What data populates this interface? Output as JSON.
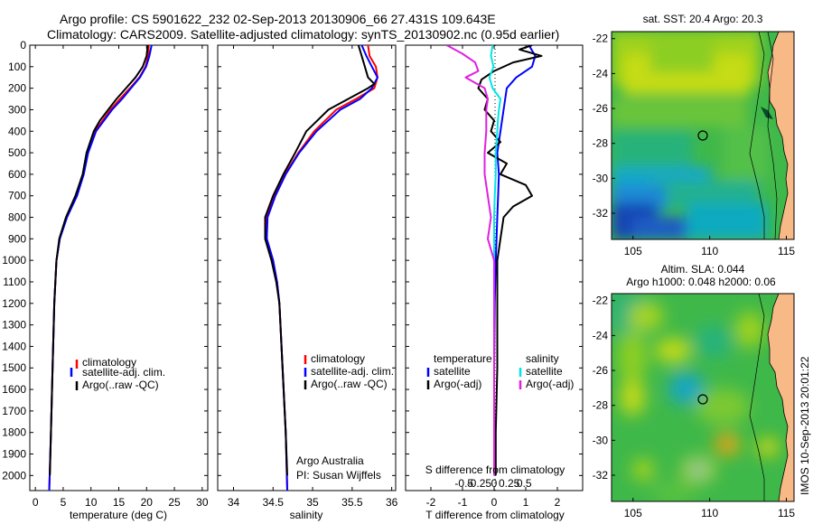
{
  "title": {
    "line1": "Argo profile: CS 5901622_232 02-Sep-2013 20130906_66 27.431S 109.643E",
    "line2": "Climatology: CARS2009. Satellite-adjusted climatology: synTS_20130902.nc (0.95d earlier)"
  },
  "stamp": "IMOS 10-Sep-2013 20:01:22",
  "colors": {
    "climatology": "#ff0000",
    "satellite": "#0000ff",
    "argo": "#000000",
    "salinity_satellite": "#00e5e5",
    "salinity_argo": "#e020e0"
  },
  "chart_data": [
    {
      "type": "line",
      "xlabel": "temperature (deg C)",
      "ylabel": "",
      "xlim": [
        -1,
        31
      ],
      "ylim": [
        2070,
        0
      ],
      "x_ticks": [
        "0",
        "5",
        "10",
        "15",
        "20",
        "25",
        "30"
      ],
      "y_ticks": [
        "0",
        "100",
        "200",
        "300",
        "400",
        "500",
        "600",
        "700",
        "800",
        "900",
        "1000",
        "1100",
        "1200",
        "1300",
        "1400",
        "1500",
        "1600",
        "1700",
        "1800",
        "1900",
        "2000"
      ],
      "legend": [
        "climatology",
        "satellite-adj. clim.",
        "Argo(..raw -QC)"
      ],
      "series": [
        {
          "name": "climatology",
          "color": "red",
          "depth": [
            0,
            50,
            100,
            150,
            200,
            250,
            300,
            400,
            500,
            600,
            700,
            800,
            900,
            1000,
            1200,
            1500,
            1800,
            2070
          ],
          "value": [
            20.4,
            20.3,
            19.8,
            18.7,
            17.0,
            15.2,
            13.5,
            10.7,
            9.4,
            8.6,
            7.4,
            5.6,
            4.4,
            3.8,
            3.4,
            3.1,
            2.8,
            2.5
          ]
        },
        {
          "name": "satellite-adj. clim.",
          "color": "blue",
          "depth": [
            0,
            50,
            100,
            150,
            200,
            250,
            300,
            400,
            500,
            600,
            700,
            800,
            900,
            1000,
            1200,
            1500,
            1800,
            2070
          ],
          "value": [
            20.9,
            20.5,
            19.9,
            18.8,
            17.2,
            15.6,
            13.8,
            10.9,
            9.5,
            8.7,
            7.5,
            5.7,
            4.4,
            3.8,
            3.4,
            3.1,
            2.8,
            2.5
          ]
        },
        {
          "name": "Argo(..raw -QC)",
          "color": "black",
          "depth": [
            0,
            50,
            100,
            150,
            200,
            250,
            300,
            350,
            400,
            500,
            600,
            700,
            800,
            900,
            1000,
            1200,
            1500,
            1800,
            2000
          ],
          "value": [
            20.2,
            20.0,
            19.3,
            18.0,
            16.3,
            14.6,
            13.1,
            11.6,
            10.5,
            9.2,
            8.5,
            7.2,
            5.5,
            4.3,
            3.8,
            3.4,
            3.1,
            2.8,
            2.6
          ]
        }
      ]
    },
    {
      "type": "line",
      "xlabel": "salinity",
      "xlim": [
        33.8,
        36.05
      ],
      "ylim": [
        2070,
        0
      ],
      "x_ticks": [
        "34",
        "34.5",
        "35",
        "35.5",
        "36"
      ],
      "legend": [
        "climatology",
        "satellite-adj. clim.",
        "Argo(..raw -QC)"
      ],
      "annotation": [
        "Argo Australia",
        "PI: Susan Wijffels"
      ],
      "series": [
        {
          "name": "climatology",
          "color": "red",
          "depth": [
            0,
            50,
            100,
            150,
            200,
            250,
            300,
            400,
            500,
            600,
            700,
            800,
            900,
            1000,
            1100,
            1200,
            1500,
            1800,
            2070
          ],
          "value": [
            35.7,
            35.72,
            35.8,
            35.82,
            35.78,
            35.55,
            35.3,
            35.02,
            34.82,
            34.65,
            34.52,
            34.42,
            34.42,
            34.5,
            34.55,
            34.58,
            34.62,
            34.66,
            34.68
          ]
        },
        {
          "name": "satellite-adj. clim.",
          "color": "blue",
          "depth": [
            0,
            50,
            100,
            150,
            200,
            250,
            300,
            400,
            500,
            600,
            700,
            800,
            900,
            1000,
            1100,
            1200,
            1500,
            1800,
            2070
          ],
          "value": [
            35.62,
            35.68,
            35.75,
            35.82,
            35.75,
            35.6,
            35.35,
            35.05,
            34.83,
            34.66,
            34.53,
            34.43,
            34.42,
            34.5,
            34.55,
            34.58,
            34.62,
            34.66,
            34.68
          ]
        },
        {
          "name": "Argo(..raw -QC)",
          "color": "black",
          "depth": [
            0,
            50,
            100,
            150,
            180,
            200,
            250,
            300,
            400,
            500,
            600,
            700,
            800,
            900,
            1000,
            1100,
            1200,
            1500,
            1800,
            2000
          ],
          "value": [
            35.58,
            35.62,
            35.66,
            35.7,
            35.78,
            35.7,
            35.45,
            35.2,
            34.92,
            34.78,
            34.63,
            34.5,
            34.4,
            34.4,
            34.48,
            34.54,
            34.58,
            34.62,
            34.66,
            34.68
          ]
        }
      ]
    },
    {
      "type": "line",
      "xlabel": "T difference from climatology",
      "xlabel_top": "S difference from climatology",
      "xlim": [
        -2.8,
        2.8
      ],
      "ylim": [
        2070,
        0
      ],
      "x_ticks": [
        "-2",
        "-1",
        "0",
        "1",
        "2"
      ],
      "x2_ticks": [
        "-0.5",
        "-0.25",
        "0",
        "0.25",
        "0.5"
      ],
      "legend_left_title": "temperature",
      "legend_left": [
        "satellite",
        "Argo(-adj)"
      ],
      "legend_right_title": "salinity",
      "legend_right": [
        "satellite",
        "Argo(-adj)"
      ],
      "series": [
        {
          "name": "temperature satellite",
          "color": "blue",
          "depth": [
            0,
            50,
            100,
            150,
            200,
            300,
            400,
            500,
            600,
            800,
            1000,
            1200,
            1500,
            1800,
            2000
          ],
          "value": [
            1.1,
            1.3,
            1.2,
            0.7,
            0.4,
            0.3,
            0.2,
            0.1,
            0.15,
            0.1,
            0.05,
            0.02,
            0.0,
            0.0,
            0.0
          ]
        },
        {
          "name": "temperature Argo(-adj)",
          "color": "black",
          "depth": [
            0,
            20,
            50,
            80,
            120,
            160,
            200,
            250,
            300,
            350,
            400,
            450,
            500,
            550,
            600,
            650,
            700,
            750,
            800,
            900,
            1000,
            1200,
            1500,
            1800,
            2000
          ],
          "value": [
            1.2,
            0.8,
            1.5,
            0.6,
            0.0,
            -0.4,
            -0.5,
            -0.2,
            -0.3,
            0.0,
            -0.1,
            0.2,
            -0.2,
            0.4,
            0.2,
            1.0,
            1.2,
            0.6,
            0.3,
            0.2,
            0.1,
            0.1,
            0.1,
            0.05,
            0.05
          ]
        },
        {
          "name": "salinity satellite",
          "color": "cyan",
          "depth": [
            0,
            50,
            100,
            150,
            200,
            250,
            300,
            350,
            400,
            500,
            600,
            700,
            800,
            1000,
            1200,
            1500,
            1800,
            2000
          ],
          "value": [
            -0.05,
            -0.1,
            -0.02,
            -0.15,
            -0.05,
            0.2,
            0.15,
            0.12,
            0.1,
            0.05,
            0.05,
            0.02,
            0.0,
            0.0,
            0.0,
            0.0,
            0.0,
            0.0
          ]
        },
        {
          "name": "salinity Argo(-adj)",
          "color": "magenta",
          "depth": [
            0,
            40,
            80,
            120,
            150,
            200,
            250,
            300,
            400,
            500,
            600,
            700,
            800,
            900,
            1000,
            1200,
            1500,
            1800,
            2000
          ],
          "value": [
            -1.5,
            -1.0,
            -0.6,
            -0.5,
            -0.9,
            -0.3,
            -0.2,
            -0.25,
            -0.25,
            -0.3,
            -0.3,
            -0.2,
            -0.1,
            -0.2,
            0.0,
            0.0,
            0.0,
            0.0,
            0.0
          ]
        }
      ]
    },
    {
      "type": "heatmap",
      "title": "sat. SST: 20.4  Argo: 20.3",
      "xlim": [
        103.6,
        115.5
      ],
      "ylim": [
        -33.5,
        -21.6
      ],
      "x_ticks": [
        "105",
        "110",
        "115"
      ],
      "y_ticks": [
        "-22",
        "-24",
        "-26",
        "-28",
        "-30",
        "-32"
      ],
      "argo_marker": [
        109.64,
        -27.43
      ]
    },
    {
      "type": "heatmap",
      "title": "Altim. SLA: 0.044",
      "subtitle": "Argo h1000: 0.048 h2000: 0.06",
      "xlim": [
        103.6,
        115.5
      ],
      "ylim": [
        -33.5,
        -21.6
      ],
      "x_ticks": [
        "105",
        "110",
        "115"
      ],
      "y_ticks": [
        "-22",
        "-24",
        "-26",
        "-28",
        "-30",
        "-32"
      ],
      "argo_marker": [
        109.64,
        -27.43
      ]
    }
  ]
}
